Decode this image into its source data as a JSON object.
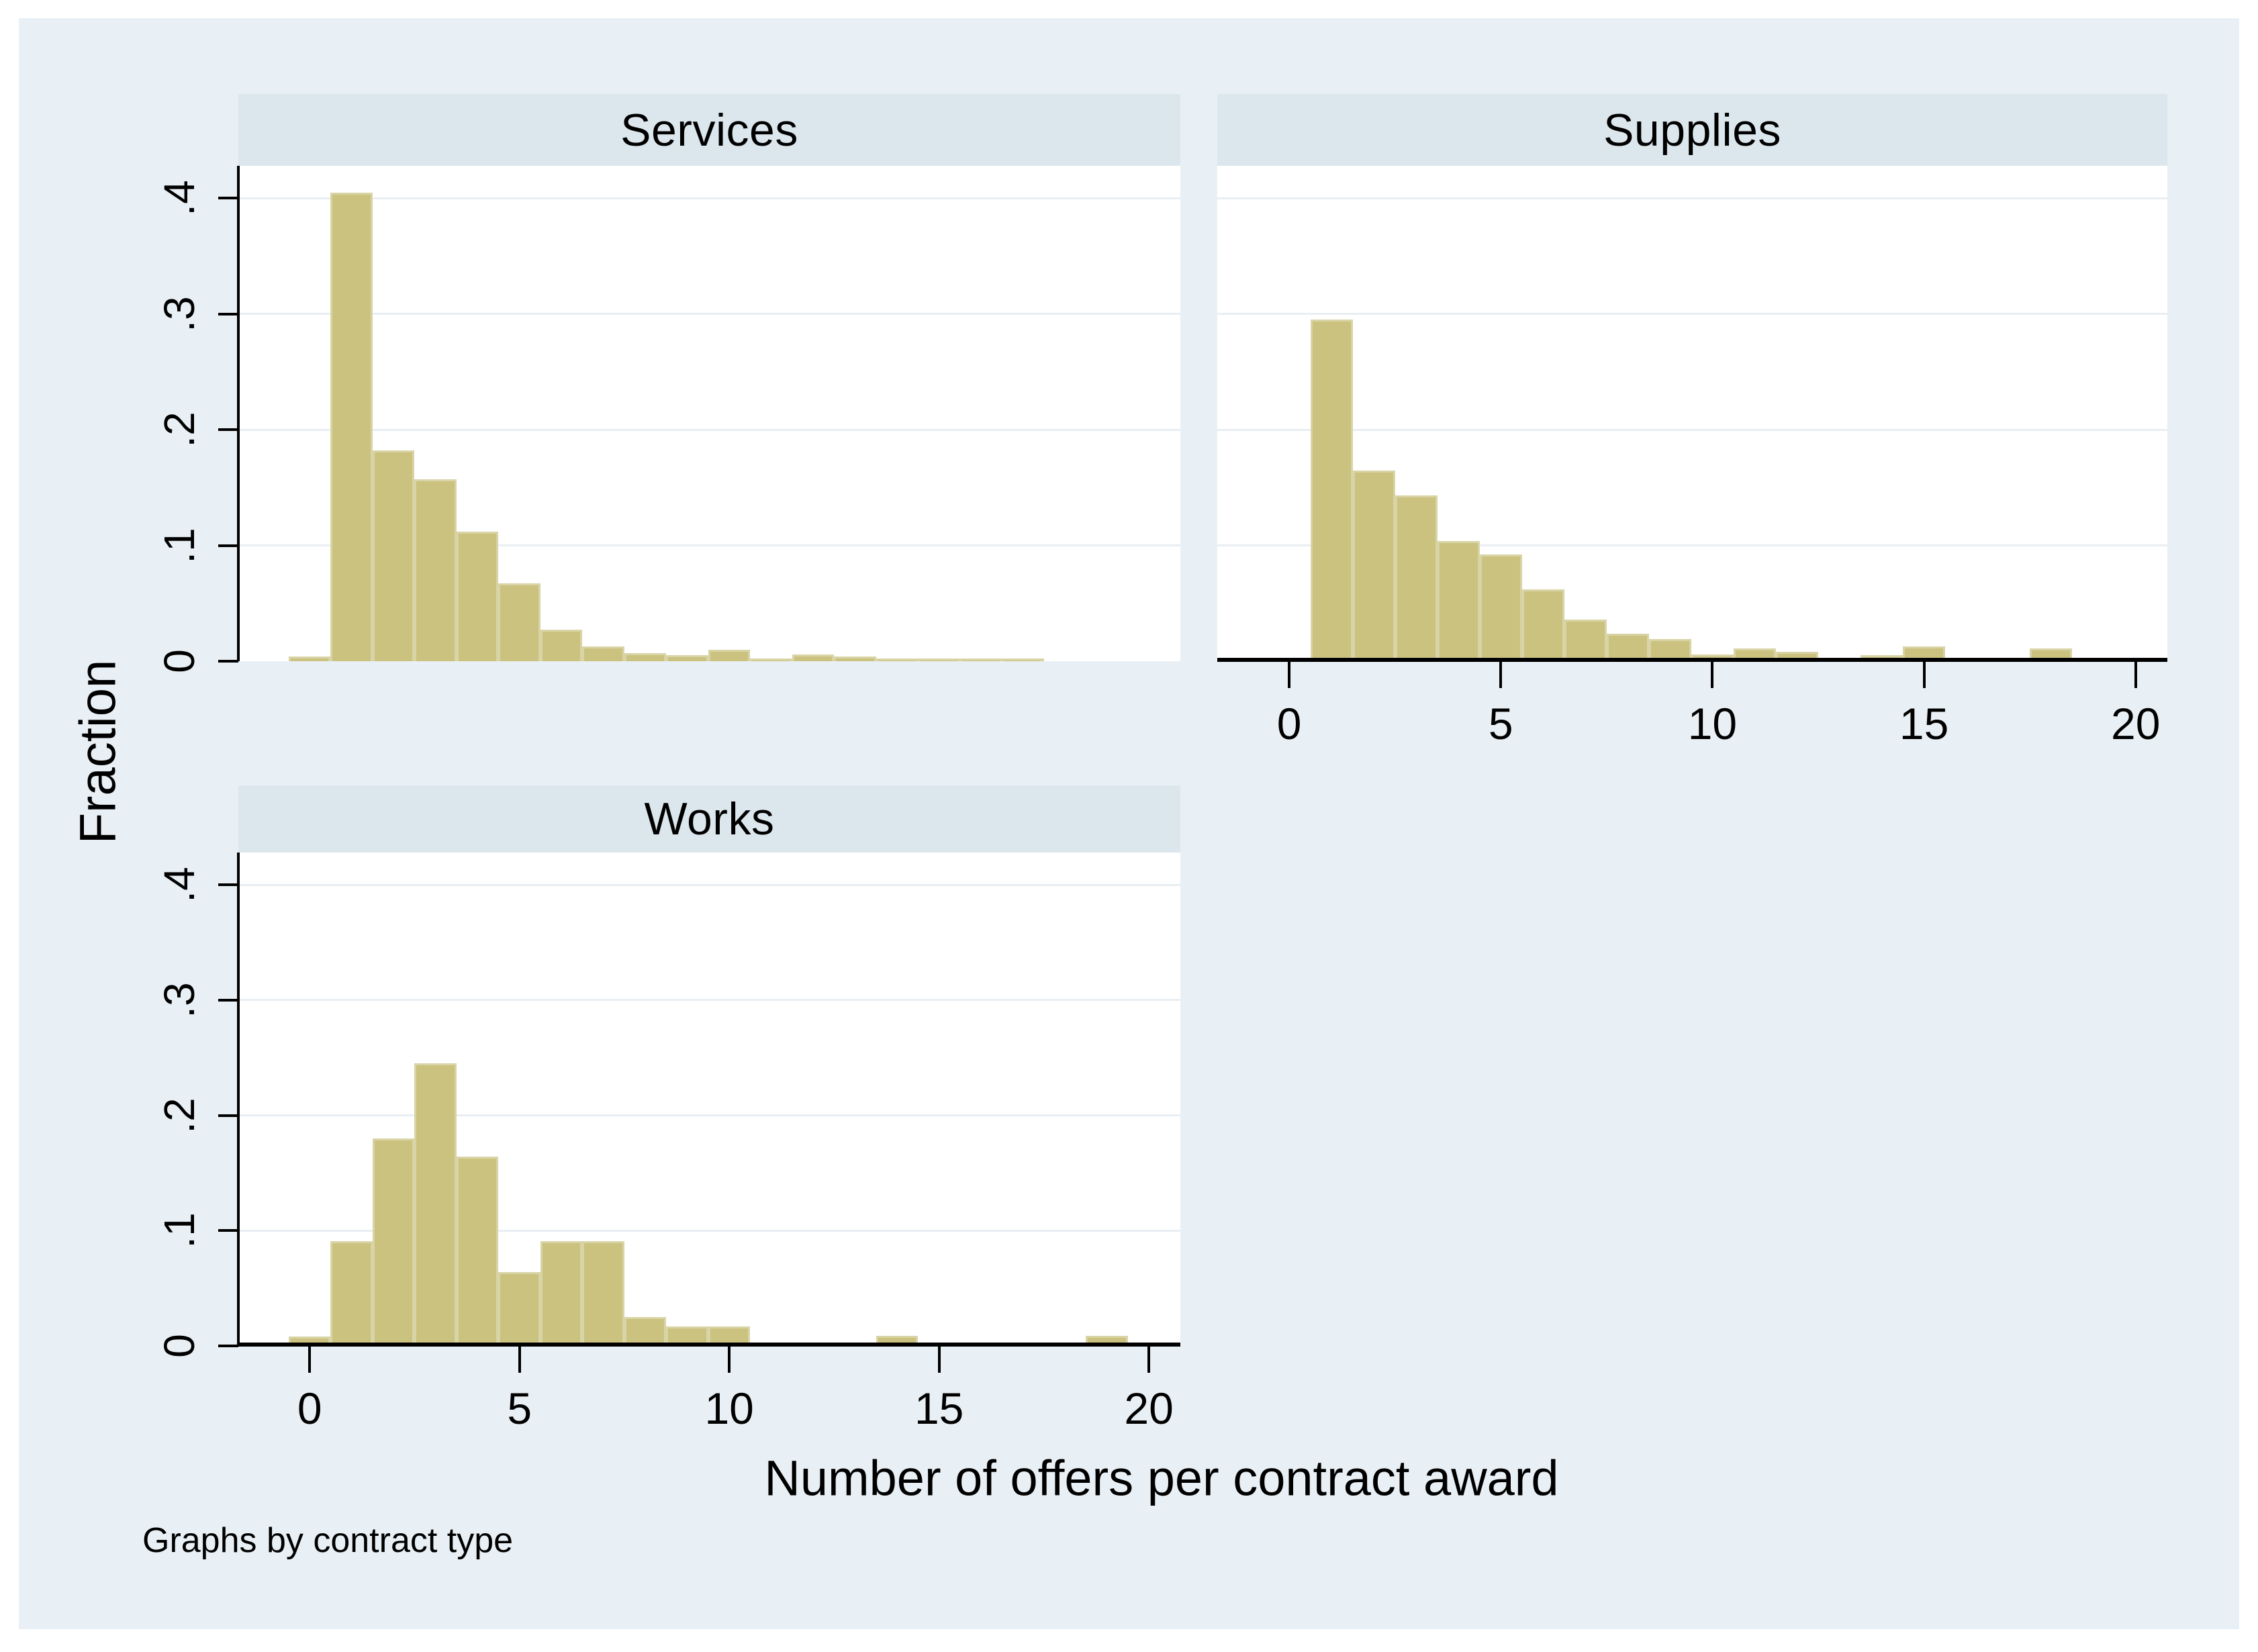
{
  "figure": {
    "ylabel": "Fraction",
    "xlabel": "Number of offers per contract award",
    "note": "Graphs by contract type"
  },
  "axes": {
    "y_tick_labels": [
      "0",
      ".1",
      ".2",
      ".3",
      ".4"
    ],
    "y_tick_values": [
      0,
      0.1,
      0.2,
      0.3,
      0.4
    ],
    "x_tick_labels": [
      "0",
      "5",
      "10",
      "15",
      "20"
    ],
    "x_tick_values": [
      0,
      5,
      10,
      15,
      20
    ],
    "x_domain": [
      -1.7,
      20.75
    ],
    "y_domain": [
      0,
      0.428
    ],
    "grid": "horizontal gridlines at y ticks",
    "legend": "none"
  },
  "colors": {
    "background": "#e9f0f5",
    "plot_background": "#ffffff",
    "title_band": "#dce6ed",
    "gridline": "#e9eef3",
    "bar_fill": "#cbc27f",
    "bar_border": "#d9d4a6",
    "axis": "#000000",
    "text": "#000000"
  },
  "chart_data": [
    {
      "type": "bar",
      "subtype": "histogram",
      "title": "Services",
      "ylabel": "Fraction",
      "xlabel": "Number of offers per contract award",
      "bin_width": 1,
      "bin_centers": [
        0,
        1,
        2,
        3,
        4,
        5,
        6,
        7,
        8,
        9,
        10,
        11,
        12,
        13,
        14,
        15,
        16,
        17
      ],
      "values": [
        0.004,
        0.405,
        0.182,
        0.157,
        0.112,
        0.067,
        0.027,
        0.013,
        0.007,
        0.005,
        0.01,
        0.002,
        0.006,
        0.004,
        0.002,
        0.002,
        0.002,
        0.002
      ],
      "xlim": [
        -1.7,
        20.75
      ],
      "ylim": [
        0,
        0.428
      ],
      "x_axis_shown": false,
      "y_axis_shown": true
    },
    {
      "type": "bar",
      "subtype": "histogram",
      "title": "Supplies",
      "ylabel": "Fraction",
      "xlabel": "Number of offers per contract award",
      "bin_width": 1,
      "bin_centers": [
        0,
        1,
        2,
        3,
        4,
        5,
        6,
        7,
        8,
        9,
        10,
        11,
        12,
        13,
        14,
        15,
        16,
        17,
        18
      ],
      "values": [
        0.003,
        0.295,
        0.165,
        0.143,
        0.104,
        0.092,
        0.062,
        0.036,
        0.024,
        0.019,
        0.006,
        0.011,
        0.008,
        0.001,
        0.005,
        0.013,
        0.002,
        0,
        0.011
      ],
      "xlim": [
        -1.7,
        20.75
      ],
      "ylim": [
        0,
        0.428
      ],
      "x_axis_shown": true,
      "y_axis_shown": false
    },
    {
      "type": "bar",
      "subtype": "histogram",
      "title": "Works",
      "ylabel": "Fraction",
      "xlabel": "Number of offers per contract award",
      "bin_width": 1,
      "bin_centers": [
        0,
        1,
        2,
        3,
        4,
        5,
        6,
        7,
        8,
        9,
        10,
        11,
        12,
        13,
        14,
        15,
        16,
        17,
        18,
        19
      ],
      "values": [
        0.008,
        0.091,
        0.18,
        0.245,
        0.164,
        0.064,
        0.091,
        0.091,
        0.025,
        0.017,
        0.017,
        0,
        0,
        0,
        0.009,
        0,
        0,
        0,
        0,
        0.009
      ],
      "xlim": [
        -1.7,
        20.75
      ],
      "ylim": [
        0,
        0.428
      ],
      "x_axis_shown": true,
      "y_axis_shown": true
    }
  ]
}
